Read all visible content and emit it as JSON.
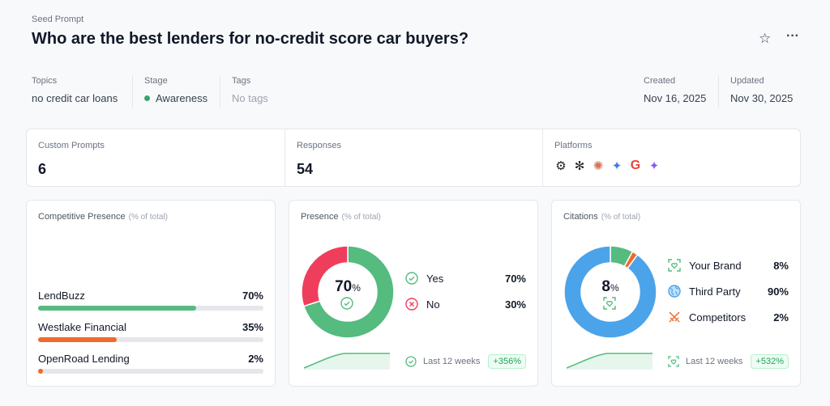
{
  "header": {
    "eyebrow": "Seed Prompt",
    "title": "Who are the best lenders for no-credit score car buyers?",
    "star_icon": "star-icon",
    "more_icon": "more-horizontal-icon"
  },
  "meta": {
    "topics": {
      "label": "Topics",
      "value": "no credit car loans"
    },
    "stage": {
      "label": "Stage",
      "value": "Awareness",
      "dot_color": "#3aa36b"
    },
    "tags": {
      "label": "Tags",
      "value": "No tags"
    },
    "created": {
      "label": "Created",
      "value": "Nov 16, 2025"
    },
    "updated": {
      "label": "Updated",
      "value": "Nov 30, 2025"
    }
  },
  "stats": {
    "custom_prompts": {
      "label": "Custom Prompts",
      "value": "6"
    },
    "responses": {
      "label": "Responses",
      "value": "54"
    },
    "platforms": {
      "label": "Platforms",
      "items": [
        "chatgpt-icon",
        "perplexity-icon",
        "claude-icon",
        "gemini-icon",
        "google-icon",
        "google-ai-icon"
      ]
    }
  },
  "competitive": {
    "title": "Competitive Presence",
    "subtitle": "(% of total)",
    "items": [
      {
        "name": "LendBuzz",
        "pct": "70%",
        "value": 70,
        "color": "#55bb7f"
      },
      {
        "name": "Westlake Financial",
        "pct": "35%",
        "value": 35,
        "color": "#ef6a2c"
      },
      {
        "name": "OpenRoad Lending",
        "pct": "2%",
        "value": 2,
        "color": "#ef6a2c"
      }
    ]
  },
  "presence": {
    "title": "Presence",
    "subtitle": "(% of total)",
    "center": "70",
    "center_unit": "%",
    "items": [
      {
        "name": "Yes",
        "pct": "70%",
        "value": 70,
        "color": "#55bb7f"
      },
      {
        "name": "No",
        "pct": "30%",
        "value": 30,
        "color": "#ef3e5c"
      }
    ],
    "footer": "Last 12 weeks",
    "change": "+356%"
  },
  "citations": {
    "title": "Citations",
    "subtitle": "(% of total)",
    "center": "8",
    "center_unit": "%",
    "items": [
      {
        "name": "Your Brand",
        "pct": "8%",
        "value": 8,
        "color": "#55bb7f"
      },
      {
        "name": "Competitors",
        "pct": "2%",
        "value": 2,
        "color": "#ef6a2c"
      },
      {
        "name": "Third Party",
        "pct": "90%",
        "value": 90,
        "color": "#4ba3ea"
      }
    ],
    "footer": "Last 12 weeks",
    "change": "+532%"
  }
}
